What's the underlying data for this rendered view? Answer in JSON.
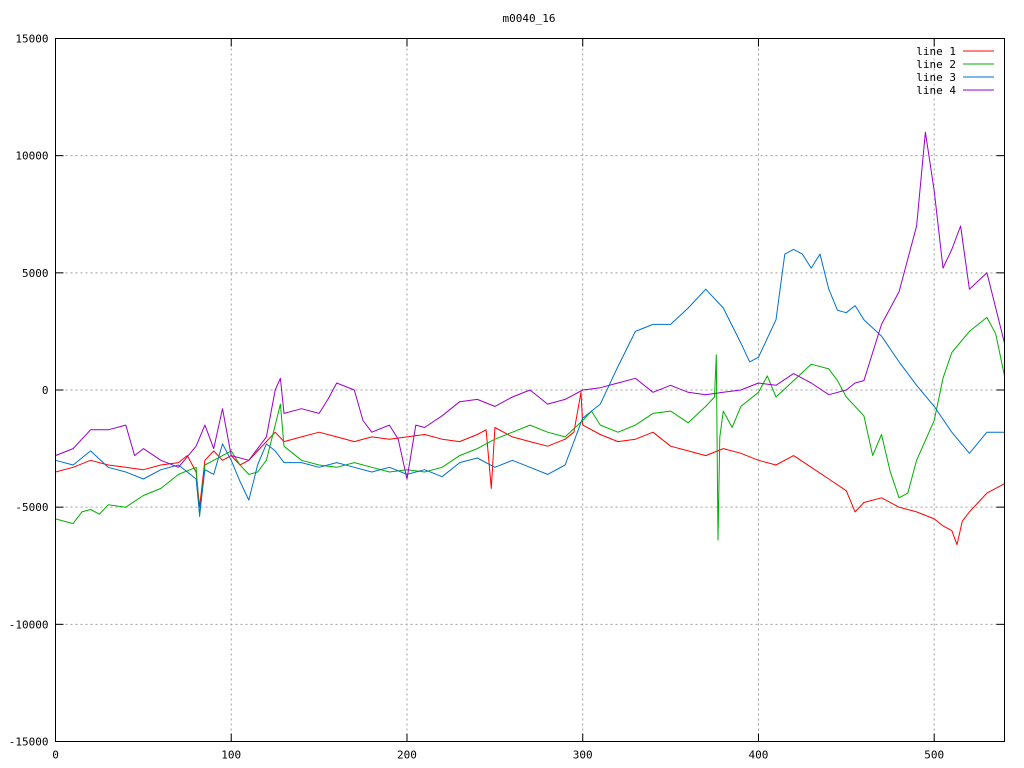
{
  "chart_data": {
    "type": "line",
    "title": "m0040_16",
    "xlabel": "",
    "ylabel": "",
    "xlim": [
      0,
      540
    ],
    "ylim": [
      -15000,
      15000
    ],
    "grid": true,
    "legend_position": "top-right",
    "x_ticks": [
      0,
      100,
      200,
      300,
      400,
      500
    ],
    "y_ticks": [
      -15000,
      -10000,
      -5000,
      0,
      5000,
      10000,
      15000
    ],
    "x_tick_labels": [
      "0",
      "100",
      "200",
      "300",
      "400",
      "500"
    ],
    "y_tick_labels": [
      "-15000",
      "-10000",
      "-5000",
      "0",
      "5000",
      "10000",
      "15000"
    ],
    "series": [
      {
        "name": "line 1",
        "color": "#ff0000",
        "points": [
          [
            0,
            -3500
          ],
          [
            10,
            -3300
          ],
          [
            20,
            -3000
          ],
          [
            30,
            -3200
          ],
          [
            40,
            -3300
          ],
          [
            50,
            -3400
          ],
          [
            60,
            -3200
          ],
          [
            70,
            -3100
          ],
          [
            75,
            -2800
          ],
          [
            80,
            -3500
          ],
          [
            82,
            -5000
          ],
          [
            85,
            -3000
          ],
          [
            90,
            -2600
          ],
          [
            95,
            -3000
          ],
          [
            100,
            -2800
          ],
          [
            105,
            -3200
          ],
          [
            110,
            -3000
          ],
          [
            115,
            -2600
          ],
          [
            120,
            -2200
          ],
          [
            125,
            -1800
          ],
          [
            130,
            -2200
          ],
          [
            140,
            -2000
          ],
          [
            150,
            -1800
          ],
          [
            160,
            -2000
          ],
          [
            170,
            -2200
          ],
          [
            180,
            -2000
          ],
          [
            190,
            -2100
          ],
          [
            200,
            -2000
          ],
          [
            210,
            -1900
          ],
          [
            220,
            -2100
          ],
          [
            230,
            -2200
          ],
          [
            240,
            -1900
          ],
          [
            245,
            -1700
          ],
          [
            248,
            -4200
          ],
          [
            250,
            -1600
          ],
          [
            260,
            -2000
          ],
          [
            270,
            -2200
          ],
          [
            280,
            -2400
          ],
          [
            290,
            -2100
          ],
          [
            295,
            -1800
          ],
          [
            299,
            -100
          ],
          [
            300,
            -1500
          ],
          [
            310,
            -1900
          ],
          [
            320,
            -2200
          ],
          [
            330,
            -2100
          ],
          [
            340,
            -1800
          ],
          [
            350,
            -2400
          ],
          [
            360,
            -2600
          ],
          [
            370,
            -2800
          ],
          [
            380,
            -2500
          ],
          [
            390,
            -2700
          ],
          [
            400,
            -3000
          ],
          [
            410,
            -3200
          ],
          [
            420,
            -2800
          ],
          [
            430,
            -3300
          ],
          [
            440,
            -3800
          ],
          [
            450,
            -4300
          ],
          [
            455,
            -5200
          ],
          [
            460,
            -4800
          ],
          [
            470,
            -4600
          ],
          [
            480,
            -5000
          ],
          [
            490,
            -5200
          ],
          [
            500,
            -5500
          ],
          [
            505,
            -5800
          ],
          [
            510,
            -6000
          ],
          [
            513,
            -6600
          ],
          [
            516,
            -5600
          ],
          [
            520,
            -5200
          ],
          [
            530,
            -4400
          ],
          [
            540,
            -4000
          ]
        ]
      },
      {
        "name": "line 2",
        "color": "#00b000",
        "points": [
          [
            0,
            -5500
          ],
          [
            10,
            -5700
          ],
          [
            15,
            -5200
          ],
          [
            20,
            -5100
          ],
          [
            25,
            -5300
          ],
          [
            30,
            -4900
          ],
          [
            40,
            -5000
          ],
          [
            50,
            -4500
          ],
          [
            60,
            -4200
          ],
          [
            70,
            -3600
          ],
          [
            80,
            -3300
          ],
          [
            82,
            -5400
          ],
          [
            85,
            -3200
          ],
          [
            90,
            -3000
          ],
          [
            95,
            -2800
          ],
          [
            100,
            -2600
          ],
          [
            105,
            -3200
          ],
          [
            110,
            -3600
          ],
          [
            115,
            -3500
          ],
          [
            120,
            -3000
          ],
          [
            125,
            -1500
          ],
          [
            128,
            -600
          ],
          [
            130,
            -2400
          ],
          [
            140,
            -3000
          ],
          [
            150,
            -3200
          ],
          [
            160,
            -3300
          ],
          [
            170,
            -3100
          ],
          [
            180,
            -3300
          ],
          [
            190,
            -3500
          ],
          [
            200,
            -3400
          ],
          [
            210,
            -3500
          ],
          [
            220,
            -3300
          ],
          [
            230,
            -2800
          ],
          [
            240,
            -2500
          ],
          [
            250,
            -2100
          ],
          [
            260,
            -1800
          ],
          [
            270,
            -1500
          ],
          [
            280,
            -1800
          ],
          [
            290,
            -2000
          ],
          [
            300,
            -1300
          ],
          [
            305,
            -900
          ],
          [
            310,
            -1500
          ],
          [
            320,
            -1800
          ],
          [
            330,
            -1500
          ],
          [
            340,
            -1000
          ],
          [
            350,
            -900
          ],
          [
            360,
            -1400
          ],
          [
            370,
            -700
          ],
          [
            375,
            -300
          ],
          [
            376,
            1500
          ],
          [
            377,
            -6400
          ],
          [
            378,
            -2000
          ],
          [
            380,
            -900
          ],
          [
            385,
            -1600
          ],
          [
            390,
            -700
          ],
          [
            400,
            -100
          ],
          [
            405,
            600
          ],
          [
            410,
            -300
          ],
          [
            420,
            400
          ],
          [
            430,
            1100
          ],
          [
            440,
            900
          ],
          [
            445,
            400
          ],
          [
            450,
            -300
          ],
          [
            460,
            -1100
          ],
          [
            465,
            -2800
          ],
          [
            470,
            -1900
          ],
          [
            475,
            -3500
          ],
          [
            480,
            -4600
          ],
          [
            485,
            -4400
          ],
          [
            490,
            -3000
          ],
          [
            500,
            -1300
          ],
          [
            505,
            500
          ],
          [
            510,
            1600
          ],
          [
            520,
            2500
          ],
          [
            530,
            3100
          ],
          [
            535,
            2400
          ],
          [
            540,
            600
          ]
        ]
      },
      {
        "name": "line 3",
        "color": "#0070d0",
        "points": [
          [
            0,
            -3000
          ],
          [
            10,
            -3200
          ],
          [
            20,
            -2600
          ],
          [
            30,
            -3300
          ],
          [
            40,
            -3500
          ],
          [
            50,
            -3800
          ],
          [
            60,
            -3400
          ],
          [
            70,
            -3200
          ],
          [
            80,
            -3800
          ],
          [
            82,
            -5300
          ],
          [
            85,
            -3400
          ],
          [
            90,
            -3600
          ],
          [
            95,
            -2300
          ],
          [
            100,
            -3000
          ],
          [
            105,
            -3900
          ],
          [
            110,
            -4700
          ],
          [
            115,
            -3200
          ],
          [
            120,
            -2300
          ],
          [
            125,
            -2600
          ],
          [
            130,
            -3100
          ],
          [
            140,
            -3100
          ],
          [
            150,
            -3300
          ],
          [
            160,
            -3100
          ],
          [
            170,
            -3300
          ],
          [
            180,
            -3500
          ],
          [
            190,
            -3300
          ],
          [
            200,
            -3600
          ],
          [
            210,
            -3400
          ],
          [
            220,
            -3700
          ],
          [
            230,
            -3100
          ],
          [
            240,
            -2900
          ],
          [
            250,
            -3300
          ],
          [
            260,
            -3000
          ],
          [
            270,
            -3300
          ],
          [
            280,
            -3600
          ],
          [
            290,
            -3200
          ],
          [
            300,
            -1200
          ],
          [
            310,
            -600
          ],
          [
            320,
            1000
          ],
          [
            330,
            2500
          ],
          [
            340,
            2800
          ],
          [
            350,
            2800
          ],
          [
            360,
            3500
          ],
          [
            370,
            4300
          ],
          [
            380,
            3500
          ],
          [
            390,
            2000
          ],
          [
            395,
            1200
          ],
          [
            400,
            1400
          ],
          [
            410,
            3000
          ],
          [
            415,
            5800
          ],
          [
            420,
            6000
          ],
          [
            425,
            5800
          ],
          [
            430,
            5200
          ],
          [
            435,
            5800
          ],
          [
            440,
            4300
          ],
          [
            445,
            3400
          ],
          [
            450,
            3300
          ],
          [
            455,
            3600
          ],
          [
            460,
            3000
          ],
          [
            470,
            2300
          ],
          [
            480,
            1200
          ],
          [
            490,
            200
          ],
          [
            500,
            -700
          ],
          [
            510,
            -1800
          ],
          [
            520,
            -2700
          ],
          [
            530,
            -1800
          ],
          [
            540,
            -1800
          ]
        ]
      },
      {
        "name": "line 4",
        "color": "#9900cc",
        "points": [
          [
            0,
            -2800
          ],
          [
            10,
            -2500
          ],
          [
            20,
            -1700
          ],
          [
            30,
            -1700
          ],
          [
            40,
            -1500
          ],
          [
            45,
            -2800
          ],
          [
            50,
            -2500
          ],
          [
            60,
            -3000
          ],
          [
            70,
            -3300
          ],
          [
            80,
            -2400
          ],
          [
            85,
            -1500
          ],
          [
            90,
            -2500
          ],
          [
            95,
            -800
          ],
          [
            100,
            -2800
          ],
          [
            110,
            -3000
          ],
          [
            120,
            -2000
          ],
          [
            125,
            0
          ],
          [
            128,
            500
          ],
          [
            130,
            -1000
          ],
          [
            140,
            -800
          ],
          [
            150,
            -1000
          ],
          [
            155,
            -400
          ],
          [
            160,
            300
          ],
          [
            170,
            0
          ],
          [
            175,
            -1300
          ],
          [
            180,
            -1800
          ],
          [
            190,
            -1500
          ],
          [
            195,
            -2100
          ],
          [
            200,
            -3800
          ],
          [
            205,
            -1500
          ],
          [
            210,
            -1600
          ],
          [
            220,
            -1100
          ],
          [
            230,
            -500
          ],
          [
            240,
            -400
          ],
          [
            250,
            -700
          ],
          [
            260,
            -300
          ],
          [
            270,
            0
          ],
          [
            280,
            -600
          ],
          [
            290,
            -400
          ],
          [
            300,
            0
          ],
          [
            310,
            100
          ],
          [
            320,
            300
          ],
          [
            330,
            500
          ],
          [
            340,
            -100
          ],
          [
            350,
            200
          ],
          [
            360,
            -100
          ],
          [
            370,
            -200
          ],
          [
            380,
            -100
          ],
          [
            390,
            0
          ],
          [
            400,
            300
          ],
          [
            410,
            200
          ],
          [
            420,
            700
          ],
          [
            430,
            300
          ],
          [
            440,
            -200
          ],
          [
            450,
            0
          ],
          [
            455,
            300
          ],
          [
            460,
            400
          ],
          [
            470,
            2800
          ],
          [
            480,
            4200
          ],
          [
            490,
            7000
          ],
          [
            495,
            11000
          ],
          [
            500,
            8500
          ],
          [
            505,
            5200
          ],
          [
            510,
            6000
          ],
          [
            515,
            7000
          ],
          [
            520,
            4300
          ],
          [
            530,
            5000
          ],
          [
            540,
            2000
          ]
        ]
      }
    ]
  }
}
